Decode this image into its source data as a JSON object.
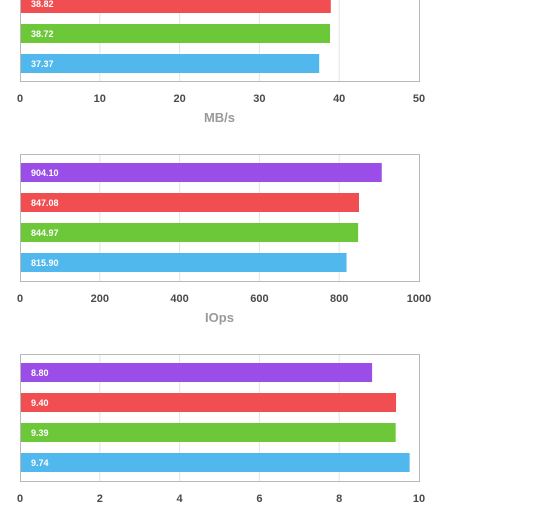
{
  "colors": {
    "purple": "#9b4de8",
    "red": "#f04e51",
    "green": "#6cc739",
    "blue": "#50b8ec",
    "frame": "#b8b8b8",
    "grid": "#e3e3e3"
  },
  "chart_data": [
    {
      "type": "bar",
      "orientation": "horizontal",
      "xlabel": "MB/s",
      "xlim": [
        0,
        50
      ],
      "xticks": [
        "0",
        "10",
        "20",
        "30",
        "40",
        "50"
      ],
      "grid": true,
      "bars": [
        {
          "label": "38.82",
          "value": 38.82,
          "color": "red"
        },
        {
          "label": "38.72",
          "value": 38.72,
          "color": "green"
        },
        {
          "label": "37.37",
          "value": 37.37,
          "color": "blue"
        }
      ],
      "cropped_top": true
    },
    {
      "type": "bar",
      "orientation": "horizontal",
      "xlabel": "IOps",
      "xlim": [
        0,
        1000
      ],
      "xticks": [
        "0",
        "200",
        "400",
        "600",
        "800",
        "1000"
      ],
      "grid": true,
      "bars": [
        {
          "label": "904.10",
          "value": 904.1,
          "color": "purple"
        },
        {
          "label": "847.08",
          "value": 847.08,
          "color": "red"
        },
        {
          "label": "844.97",
          "value": 844.97,
          "color": "green"
        },
        {
          "label": "815.90",
          "value": 815.9,
          "color": "blue"
        }
      ]
    },
    {
      "type": "bar",
      "orientation": "horizontal",
      "xlabel": "",
      "xlim": [
        0,
        10
      ],
      "xticks": [
        "0",
        "2",
        "4",
        "6",
        "8",
        "10"
      ],
      "grid": true,
      "bars": [
        {
          "label": "8.80",
          "value": 8.8,
          "color": "purple"
        },
        {
          "label": "9.40",
          "value": 9.4,
          "color": "red"
        },
        {
          "label": "9.39",
          "value": 9.39,
          "color": "green"
        },
        {
          "label": "9.74",
          "value": 9.74,
          "color": "blue"
        }
      ]
    }
  ]
}
